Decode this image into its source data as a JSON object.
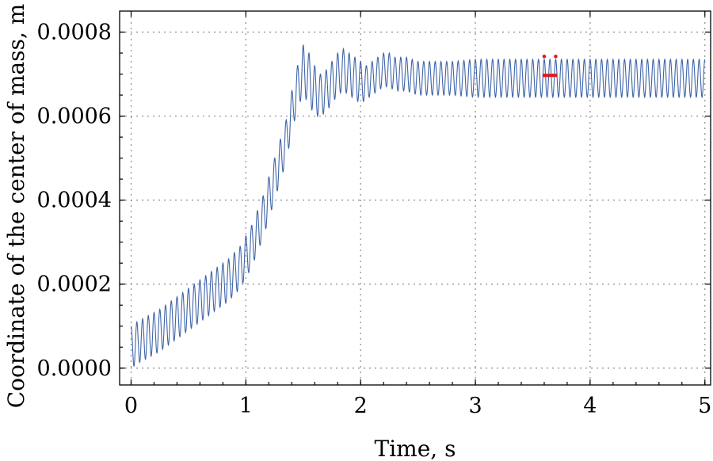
{
  "chart_data": {
    "type": "line",
    "title": "",
    "xlabel": "Time, s",
    "ylabel": "Coordinate of the center of mass, m",
    "xlim": [
      -0.1,
      5.05
    ],
    "ylim": [
      -4e-05,
      0.00085
    ],
    "x_ticks": [
      0,
      1,
      2,
      3,
      4,
      5
    ],
    "x_tick_labels": [
      "0",
      "1",
      "2",
      "3",
      "4",
      "5"
    ],
    "y_ticks": [
      0.0,
      0.0002,
      0.0004,
      0.0006,
      0.0008
    ],
    "y_tick_labels": [
      "0.0000",
      "0.0002",
      "0.0004",
      "0.0006",
      "0.0008"
    ],
    "grid": true,
    "line_color": "#3f65a8",
    "marker_color": "#e41a1c",
    "series": [
      {
        "x": [
          0.0,
          0.05,
          0.15,
          0.25,
          0.35,
          0.45,
          0.55,
          0.65,
          0.75,
          0.85,
          0.95,
          1.05,
          1.15,
          1.25,
          1.35,
          1.4,
          1.45,
          1.5,
          1.55,
          1.6,
          1.65,
          1.7,
          1.75,
          1.8,
          1.85,
          1.9,
          1.95,
          2.0,
          2.05,
          2.1,
          2.15,
          2.2,
          2.25,
          2.3,
          2.4,
          2.5,
          2.6,
          2.8,
          3.0,
          3.5,
          4.0,
          4.5,
          5.0
        ],
        "mid": [
          5e-05,
          6e-05,
          7.5e-05,
          9e-05,
          0.00011,
          0.00013,
          0.00015,
          0.00017,
          0.00019,
          0.00021,
          0.00024,
          0.00029,
          0.00036,
          0.00045,
          0.00054,
          0.00061,
          0.00067,
          0.00071,
          0.00069,
          0.00066,
          0.00065,
          0.00066,
          0.00068,
          0.0007,
          0.00071,
          0.0007,
          0.00069,
          0.00068,
          0.00068,
          0.00069,
          0.0007,
          0.00071,
          0.00071,
          0.0007,
          0.0007,
          0.00069,
          0.00069,
          0.00069,
          0.00069,
          0.00069,
          0.00069,
          0.00069,
          0.00069
        ],
        "amp": [
          5e-05,
          5e-05,
          5e-05,
          5e-05,
          5e-05,
          5e-05,
          5e-05,
          5e-05,
          5e-05,
          5e-05,
          5e-05,
          5e-05,
          5e-05,
          5e-05,
          5e-05,
          5e-05,
          5e-05,
          6e-05,
          6e-05,
          6e-05,
          5e-05,
          5e-05,
          5e-05,
          5e-05,
          5e-05,
          5e-05,
          5e-05,
          5e-05,
          4e-05,
          4e-05,
          4e-05,
          4e-05,
          4e-05,
          4e-05,
          4e-05,
          4e-05,
          4e-05,
          4e-05,
          4.5e-05,
          4.5e-05,
          4.5e-05,
          4.5e-05,
          4.5e-05
        ],
        "oscillation_frequency_hz": 20
      }
    ],
    "annotations": [
      {
        "type": "points",
        "x": [
          3.6,
          3.7
        ],
        "y": [
          0.000742,
          0.000742
        ]
      },
      {
        "type": "points",
        "x": [
          3.6,
          3.625,
          3.65,
          3.675,
          3.7
        ],
        "y": [
          0.000697,
          0.000697,
          0.000697,
          0.000697,
          0.000697
        ]
      }
    ]
  }
}
